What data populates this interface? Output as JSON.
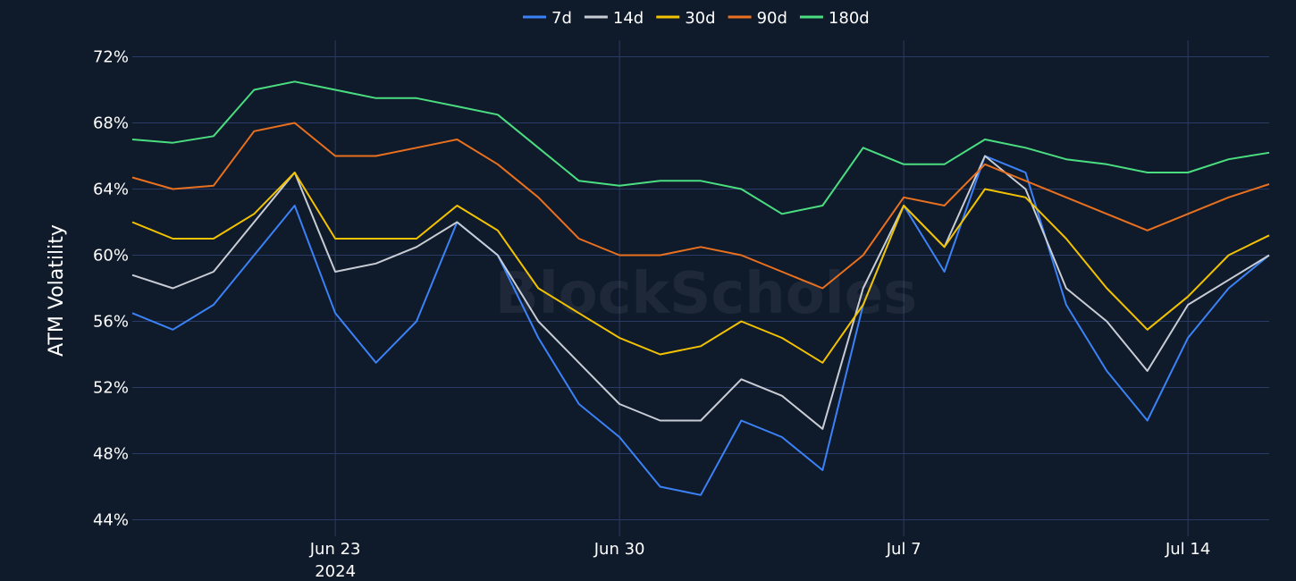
{
  "watermark": "BlockScholes",
  "chart_data": {
    "type": "line",
    "ylabel": "ATM Volatility",
    "y_unit": "%",
    "ylim": [
      43,
      73
    ],
    "y_ticks": [
      {
        "value": 44,
        "label": "44%"
      },
      {
        "value": 48,
        "label": "48%"
      },
      {
        "value": 52,
        "label": "52%"
      },
      {
        "value": 56,
        "label": "56%"
      },
      {
        "value": 60,
        "label": "60%"
      },
      {
        "value": 64,
        "label": "64%"
      },
      {
        "value": 68,
        "label": "68%"
      },
      {
        "value": 72,
        "label": "72%"
      }
    ],
    "xlim": [
      "2024-06-18",
      "2024-07-16"
    ],
    "x_ticks": [
      {
        "date": "2024-06-23",
        "label": "Jun 23",
        "sublabel": "2024"
      },
      {
        "date": "2024-06-30",
        "label": "Jun 30",
        "sublabel": ""
      },
      {
        "date": "2024-07-07",
        "label": "Jul 7",
        "sublabel": ""
      },
      {
        "date": "2024-07-14",
        "label": "Jul 14",
        "sublabel": ""
      }
    ],
    "grid": true,
    "legend_position": "top-center",
    "x": [
      "2024-06-18",
      "2024-06-19",
      "2024-06-20",
      "2024-06-21",
      "2024-06-22",
      "2024-06-23",
      "2024-06-24",
      "2024-06-25",
      "2024-06-26",
      "2024-06-27",
      "2024-06-28",
      "2024-06-29",
      "2024-06-30",
      "2024-07-01",
      "2024-07-02",
      "2024-07-03",
      "2024-07-04",
      "2024-07-05",
      "2024-07-06",
      "2024-07-07",
      "2024-07-08",
      "2024-07-09",
      "2024-07-10",
      "2024-07-11",
      "2024-07-12",
      "2024-07-13",
      "2024-07-14",
      "2024-07-15",
      "2024-07-16"
    ],
    "series": [
      {
        "name": "7d",
        "color": "#3b82f6",
        "values": [
          56.5,
          55.5,
          57,
          60,
          63,
          56.5,
          53.5,
          56,
          62,
          60,
          55,
          51,
          49,
          46,
          45.5,
          50,
          49,
          47,
          57,
          63,
          59,
          66,
          65,
          57,
          53,
          50,
          55,
          58,
          60
        ]
      },
      {
        "name": "14d",
        "color": "#c8ccd4",
        "values": [
          58.8,
          58,
          59,
          62,
          65,
          59,
          59.5,
          60.5,
          62,
          60,
          56,
          53.5,
          51,
          50,
          50,
          52.5,
          51.5,
          49.5,
          58,
          63,
          60.5,
          66,
          64,
          58,
          56,
          53,
          57,
          58.5,
          60
        ]
      },
      {
        "name": "30d",
        "color": "#f2c200",
        "values": [
          62,
          61,
          61,
          62.5,
          65,
          61,
          61,
          61,
          63,
          61.5,
          58,
          56.5,
          55,
          54,
          54.5,
          56,
          55,
          53.5,
          57,
          63,
          60.5,
          64,
          63.5,
          61,
          58,
          55.5,
          57.5,
          60,
          61.2
        ]
      },
      {
        "name": "90d",
        "color": "#e8701e",
        "values": [
          64.7,
          64,
          64.2,
          67.5,
          68,
          66,
          66,
          66.5,
          67,
          65.5,
          63.5,
          61,
          60,
          60,
          60.5,
          60,
          59,
          58,
          60,
          63.5,
          63,
          65.5,
          64.5,
          63.5,
          62.5,
          61.5,
          62.5,
          63.5,
          64.3
        ]
      },
      {
        "name": "180d",
        "color": "#4ade80",
        "values": [
          67,
          66.8,
          67.2,
          70,
          70.5,
          70,
          69.5,
          69.5,
          69,
          68.5,
          66.5,
          64.5,
          64.2,
          64.5,
          64.5,
          64,
          62.5,
          63,
          66.5,
          65.5,
          65.5,
          67,
          66.5,
          65.8,
          65.5,
          65,
          65,
          65.8,
          66.2
        ]
      }
    ]
  }
}
